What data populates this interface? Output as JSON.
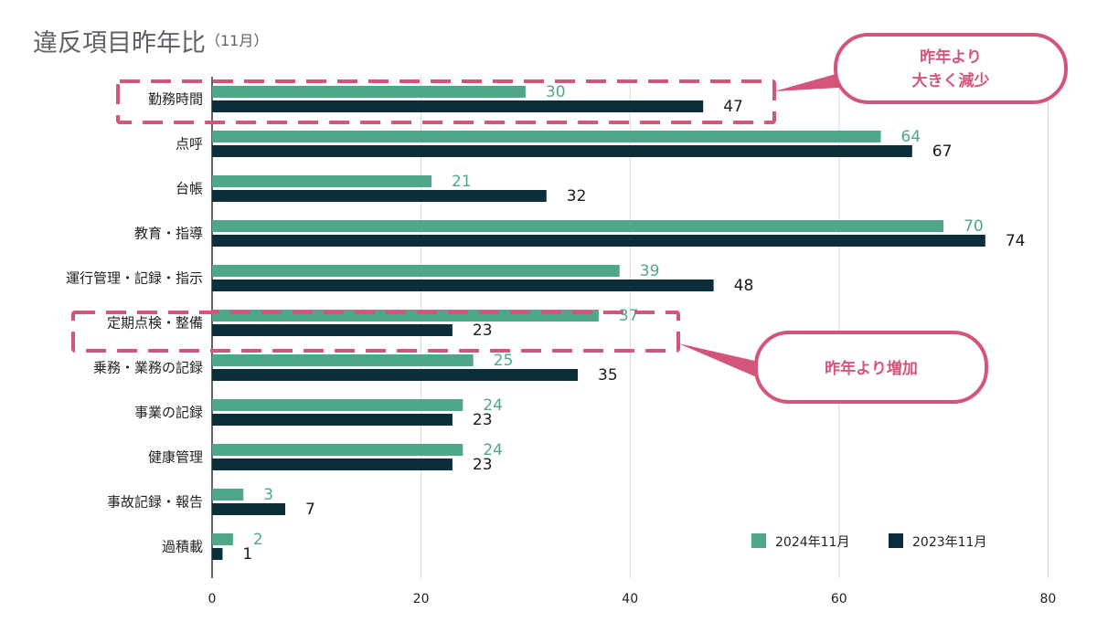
{
  "chart_data": {
    "type": "bar",
    "orientation": "horizontal",
    "title": "違反項目昨年比",
    "subtitle": "（11月）",
    "categories": [
      "勤務時間",
      "点呼",
      "台帳",
      "教育・指導",
      "運行管理・記録・指示",
      "定期点検・整備",
      "乗務・業務の記録",
      "事業の記録",
      "健康管理",
      "事故記録・報告",
      "過積載"
    ],
    "series": [
      {
        "name": "2024年11月",
        "color": "#4fa78a",
        "values": [
          30,
          64,
          21,
          70,
          39,
          37,
          25,
          24,
          24,
          3,
          2
        ]
      },
      {
        "name": "2023年11月",
        "color": "#0a2f3b",
        "values": [
          47,
          67,
          32,
          74,
          48,
          23,
          35,
          23,
          23,
          7,
          1
        ]
      }
    ],
    "xlim": [
      0,
      80
    ],
    "xticks": [
      0,
      20,
      40,
      60,
      80
    ],
    "grid": true,
    "legend_position": "bottom-right"
  },
  "callouts": [
    {
      "lines": [
        "昨年より",
        "大きく減少"
      ],
      "category": "勤務時間",
      "accent": "#d4557a"
    },
    {
      "lines": [
        "昨年より増加"
      ],
      "category": "定期点検・整備",
      "accent": "#d4557a"
    }
  ]
}
